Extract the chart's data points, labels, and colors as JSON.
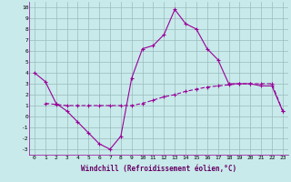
{
  "x_ticks": [
    0,
    1,
    2,
    3,
    4,
    5,
    6,
    7,
    8,
    9,
    10,
    11,
    12,
    13,
    14,
    15,
    16,
    17,
    18,
    19,
    20,
    21,
    22,
    23
  ],
  "line1_x": [
    0,
    1,
    2,
    3,
    4,
    5,
    6,
    7,
    8,
    9,
    10,
    11,
    12,
    13,
    14,
    15,
    16,
    17,
    18,
    19,
    20,
    21,
    22,
    23
  ],
  "line1_y": [
    4.0,
    3.2,
    1.2,
    0.5,
    -0.5,
    -1.5,
    -2.5,
    -3.0,
    -1.8,
    3.5,
    6.2,
    6.5,
    7.5,
    9.8,
    8.5,
    8.0,
    6.2,
    5.2,
    3.0,
    3.0,
    3.0,
    2.8,
    2.8,
    0.5
  ],
  "line2_x": [
    1,
    2,
    3,
    4,
    5,
    6,
    7,
    8,
    9,
    10,
    11,
    12,
    13,
    14,
    15,
    16,
    17,
    18,
    19,
    20,
    21,
    22,
    23
  ],
  "line2_y": [
    1.2,
    1.1,
    1.0,
    1.0,
    1.0,
    1.0,
    1.0,
    1.0,
    1.0,
    1.2,
    1.5,
    1.8,
    2.0,
    2.3,
    2.5,
    2.7,
    2.8,
    2.9,
    3.0,
    3.0,
    3.0,
    3.0,
    0.5
  ],
  "ylim": [
    -3.5,
    10.5
  ],
  "yticks": [
    -3,
    -2,
    -1,
    0,
    1,
    2,
    3,
    4,
    5,
    6,
    7,
    8,
    9,
    10
  ],
  "xlabel": "Windchill (Refroidissement éolien,°C)",
  "line_color": "#990099",
  "bg_color": "#c8eaea",
  "grid_color": "#aacccc",
  "grid_color2": "#99bbbb"
}
